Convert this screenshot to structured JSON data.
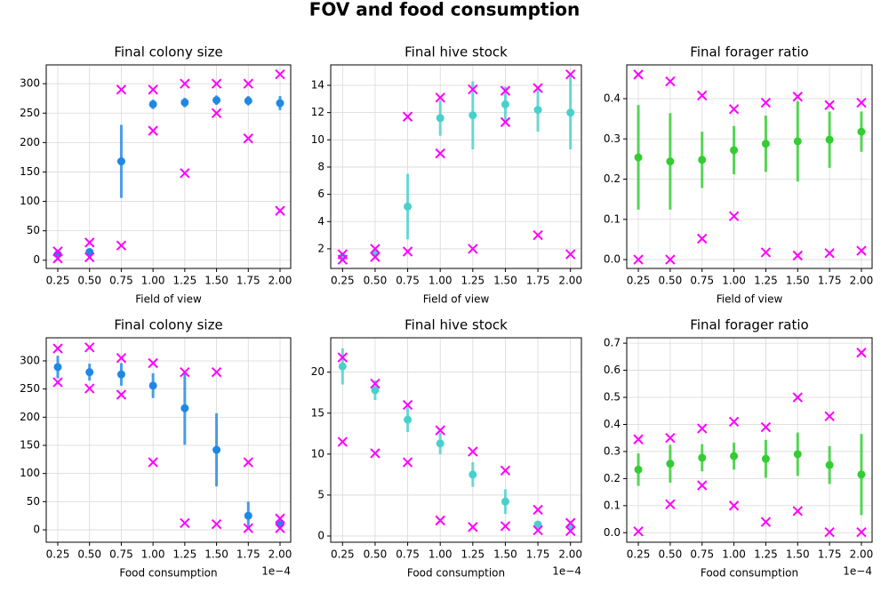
{
  "title": "FOV and food consumption",
  "chart_data": [
    {
      "type": "errorbar",
      "title": "Final colony size",
      "xlabel": "Field of view",
      "color": "#1e88e5",
      "extreme_color": "#ff00ff",
      "x": [
        0.25,
        0.5,
        0.75,
        1.0,
        1.25,
        1.5,
        1.75,
        2.0
      ],
      "mean": [
        10,
        14,
        168,
        265,
        268,
        272,
        271,
        267
      ],
      "error": [
        3,
        4,
        62,
        8,
        8,
        8,
        8,
        12
      ],
      "max": [
        15,
        30,
        290,
        290,
        300,
        300,
        300,
        316
      ],
      "min": [
        3,
        5,
        25,
        220,
        148,
        250,
        207,
        84
      ],
      "xlim": [
        0.159,
        2.084
      ],
      "ylim": [
        -14,
        332
      ],
      "xticks": [
        {
          "value": 0.25,
          "label": "0.25"
        },
        {
          "value": 0.5,
          "label": "0.50"
        },
        {
          "value": 0.75,
          "label": "0.75"
        },
        {
          "value": 1.0,
          "label": "1.00"
        },
        {
          "value": 1.25,
          "label": "1.25"
        },
        {
          "value": 1.5,
          "label": "1.50"
        },
        {
          "value": 1.75,
          "label": "1.75"
        },
        {
          "value": 2.0,
          "label": "2.00"
        }
      ],
      "yticks": [
        0,
        50,
        100,
        150,
        200,
        250,
        300
      ],
      "grid": true
    },
    {
      "type": "errorbar",
      "title": "Final hive stock",
      "xlabel": "Field of view",
      "color": "#48d1cc",
      "extreme_color": "#ff00ff",
      "x": [
        0.25,
        0.5,
        0.75,
        1.0,
        1.25,
        1.5,
        1.75,
        2.0
      ],
      "mean": [
        1.4,
        1.7,
        5.1,
        11.6,
        11.8,
        12.6,
        12.2,
        12.0
      ],
      "error": [
        0.1,
        0.1,
        2.4,
        1.3,
        2.5,
        1.3,
        1.6,
        2.7
      ],
      "max": [
        1.6,
        2.0,
        11.7,
        13.1,
        13.7,
        13.6,
        13.8,
        14.8
      ],
      "min": [
        1.2,
        1.4,
        1.8,
        9.0,
        2.0,
        11.3,
        3.0,
        1.6
      ],
      "xlim": [
        0.159,
        2.084
      ],
      "ylim": [
        0.56,
        15.5
      ],
      "xticks": [
        {
          "value": 0.25,
          "label": "0.25"
        },
        {
          "value": 0.5,
          "label": "0.50"
        },
        {
          "value": 0.75,
          "label": "0.75"
        },
        {
          "value": 1.0,
          "label": "1.00"
        },
        {
          "value": 1.25,
          "label": "1.25"
        },
        {
          "value": 1.5,
          "label": "1.50"
        },
        {
          "value": 1.75,
          "label": "1.75"
        },
        {
          "value": 2.0,
          "label": "2.00"
        }
      ],
      "yticks": [
        2,
        4,
        6,
        8,
        10,
        12,
        14
      ],
      "grid": true
    },
    {
      "type": "errorbar",
      "title": "Final forager ratio",
      "xlabel": "Field of view",
      "color": "#32cd32",
      "extreme_color": "#ff00ff",
      "x": [
        0.25,
        0.5,
        0.75,
        1.0,
        1.25,
        1.5,
        1.75,
        2.0
      ],
      "mean": [
        0.254,
        0.244,
        0.248,
        0.272,
        0.288,
        0.294,
        0.298,
        0.318
      ],
      "error": [
        0.13,
        0.12,
        0.07,
        0.06,
        0.07,
        0.1,
        0.07,
        0.05
      ],
      "max": [
        0.46,
        0.443,
        0.408,
        0.374,
        0.39,
        0.405,
        0.384,
        0.39
      ],
      "min": [
        0.0,
        0.0,
        0.052,
        0.108,
        0.018,
        0.01,
        0.016,
        0.022
      ],
      "xlim": [
        0.159,
        2.084
      ],
      "ylim": [
        -0.022,
        0.484
      ],
      "xticks": [
        {
          "value": 0.25,
          "label": "0.25"
        },
        {
          "value": 0.5,
          "label": "0.50"
        },
        {
          "value": 0.75,
          "label": "0.75"
        },
        {
          "value": 1.0,
          "label": "1.00"
        },
        {
          "value": 1.25,
          "label": "1.25"
        },
        {
          "value": 1.5,
          "label": "1.50"
        },
        {
          "value": 1.75,
          "label": "1.75"
        },
        {
          "value": 2.0,
          "label": "2.00"
        }
      ],
      "yticks": [
        {
          "value": 0,
          "label": "0.0"
        },
        0.1,
        0.2,
        0.3,
        0.4
      ],
      "grid": true
    },
    {
      "type": "errorbar",
      "title": "Final colony size",
      "xlabel": "Food consumption",
      "x_offset_text": "1e−4",
      "color": "#1e88e5",
      "extreme_color": "#ff00ff",
      "x": [
        2.5e-05,
        5e-05,
        7.5e-05,
        0.0001,
        0.000125,
        0.00015,
        0.000175,
        0.0002
      ],
      "mean": [
        289,
        280,
        276,
        256,
        216,
        142,
        25,
        10
      ],
      "error": [
        20,
        15,
        20,
        22,
        65,
        65,
        25,
        4
      ],
      "max": [
        322,
        324,
        305,
        296,
        280,
        280,
        120,
        20
      ],
      "min": [
        262,
        251,
        240,
        120,
        12,
        10,
        3,
        3
      ],
      "xlim": [
        1.59e-05,
        0.0002084
      ],
      "ylim": [
        -22,
        341
      ],
      "xticks": [
        {
          "value": 2.5e-05,
          "label": "0.25"
        },
        {
          "value": 5e-05,
          "label": "0.50"
        },
        {
          "value": 7.5e-05,
          "label": "0.75"
        },
        {
          "value": 0.0001,
          "label": "1.00"
        },
        {
          "value": 0.000125,
          "label": "1.25"
        },
        {
          "value": 0.00015,
          "label": "1.50"
        },
        {
          "value": 0.000175,
          "label": "1.75"
        },
        {
          "value": 0.0002,
          "label": "2.00"
        }
      ],
      "yticks": [
        0,
        50,
        100,
        150,
        200,
        250,
        300
      ],
      "grid": true
    },
    {
      "type": "errorbar",
      "title": "Final hive stock",
      "xlabel": "Food consumption",
      "x_offset_text": "1e−4",
      "color": "#48d1cc",
      "extreme_color": "#ff00ff",
      "x": [
        2.5e-05,
        5e-05,
        7.5e-05,
        0.0001,
        0.000125,
        0.00015,
        0.000175,
        0.0002
      ],
      "mean": [
        20.7,
        17.8,
        14.2,
        11.3,
        7.5,
        4.2,
        1.4,
        1.1
      ],
      "error": [
        2.2,
        1.2,
        1.5,
        1.3,
        1.5,
        1.5,
        0.3,
        0.2
      ],
      "max": [
        21.8,
        18.6,
        16.0,
        12.9,
        10.3,
        8.0,
        3.2,
        1.6
      ],
      "min": [
        11.5,
        10.1,
        9.0,
        1.9,
        1.1,
        1.2,
        0.7,
        0.6
      ],
      "xlim": [
        1.59e-05,
        0.0002084
      ],
      "ylim": [
        -0.76,
        24.2
      ],
      "xticks": [
        {
          "value": 2.5e-05,
          "label": "0.25"
        },
        {
          "value": 5e-05,
          "label": "0.50"
        },
        {
          "value": 7.5e-05,
          "label": "0.75"
        },
        {
          "value": 0.0001,
          "label": "1.00"
        },
        {
          "value": 0.000125,
          "label": "1.25"
        },
        {
          "value": 0.00015,
          "label": "1.50"
        },
        {
          "value": 0.000175,
          "label": "1.75"
        },
        {
          "value": 0.0002,
          "label": "2.00"
        }
      ],
      "yticks": [
        0,
        5,
        10,
        15,
        20
      ],
      "grid": true
    },
    {
      "type": "errorbar",
      "title": "Final forager ratio",
      "xlabel": "Food consumption",
      "x_offset_text": "1e−4",
      "color": "#32cd32",
      "extreme_color": "#ff00ff",
      "x": [
        2.5e-05,
        5e-05,
        7.5e-05,
        0.0001,
        0.000125,
        0.00015,
        0.000175,
        0.0002
      ],
      "mean": [
        0.233,
        0.255,
        0.277,
        0.283,
        0.273,
        0.29,
        0.25,
        0.215
      ],
      "error": [
        0.06,
        0.07,
        0.05,
        0.05,
        0.07,
        0.08,
        0.07,
        0.15
      ],
      "max": [
        0.345,
        0.35,
        0.385,
        0.41,
        0.39,
        0.5,
        0.43,
        0.665
      ],
      "min": [
        0.005,
        0.105,
        0.175,
        0.1,
        0.04,
        0.08,
        0.002,
        0.002
      ],
      "xlim": [
        1.59e-05,
        0.0002084
      ],
      "ylim": [
        -0.035,
        0.72
      ],
      "xticks": [
        {
          "value": 2.5e-05,
          "label": "0.25"
        },
        {
          "value": 5e-05,
          "label": "0.50"
        },
        {
          "value": 7.5e-05,
          "label": "0.75"
        },
        {
          "value": 0.0001,
          "label": "1.00"
        },
        {
          "value": 0.000125,
          "label": "1.25"
        },
        {
          "value": 0.00015,
          "label": "1.50"
        },
        {
          "value": 0.000175,
          "label": "1.75"
        },
        {
          "value": 0.0002,
          "label": "2.00"
        }
      ],
      "yticks": [
        {
          "value": 0,
          "label": "0.0"
        },
        0.1,
        0.2,
        0.3,
        0.4,
        0.5,
        0.6,
        0.7
      ],
      "grid": true
    }
  ]
}
